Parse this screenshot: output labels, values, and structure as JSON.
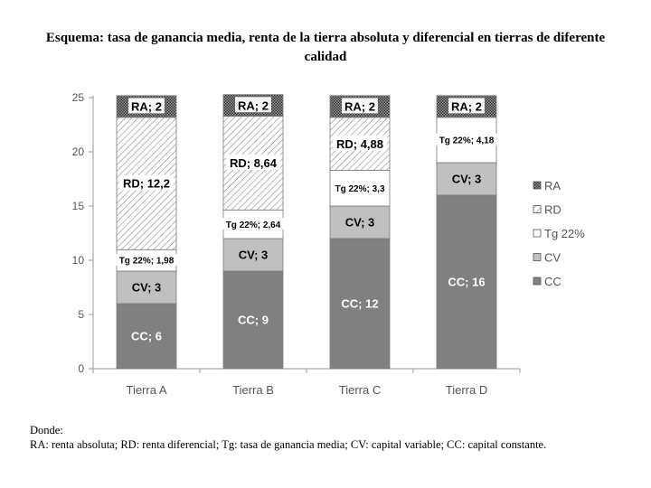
{
  "chart_data": {
    "type": "bar",
    "stacked": true,
    "title": "Esquema: tasa de ganancia media, renta de la tierra absoluta y diferencial en tierras de diferente calidad",
    "xlabel": "",
    "ylabel": "",
    "ylim": [
      0,
      25
    ],
    "yticks": [
      0,
      5,
      10,
      15,
      20,
      25
    ],
    "grid": false,
    "legend_position": "right",
    "categories": [
      "Tierra A",
      "Tierra B",
      "Tierra C",
      "Tierra D"
    ],
    "series": [
      {
        "name": "CC",
        "values": [
          6,
          9,
          12,
          16
        ],
        "labels": [
          "CC; 6",
          "CC; 9",
          "CC; 12",
          "CC; 16"
        ],
        "color": "#808080",
        "pattern": "solid"
      },
      {
        "name": "CV",
        "values": [
          3,
          3,
          3,
          3
        ],
        "labels": [
          "CV; 3",
          "CV; 3",
          "CV; 3",
          "CV; 3"
        ],
        "color": "#c0c0c0",
        "pattern": "solid"
      },
      {
        "name": "Tg 22%",
        "values": [
          1.98,
          2.64,
          3.3,
          4.18
        ],
        "labels": [
          "Tg 22%; 1,98",
          "Tg 22%; 2,64",
          "Tg 22%; 3,3",
          "Tg 22%; 4,18"
        ],
        "color": "#ffffff",
        "pattern": "solid"
      },
      {
        "name": "RD",
        "values": [
          12.2,
          8.64,
          4.88,
          0
        ],
        "labels": [
          "RD; 12,2",
          "RD; 8,64",
          "RD; 4,88",
          ""
        ],
        "color": "#ffffff",
        "pattern": "diagonal-light"
      },
      {
        "name": "RA",
        "values": [
          2,
          2,
          2,
          2
        ],
        "labels": [
          "RA; 2",
          "RA; 2",
          "RA; 2",
          "RA; 2"
        ],
        "color": "#555555",
        "pattern": "dense-dots"
      }
    ]
  },
  "note": {
    "heading": "Donde:",
    "text": "RA: renta absoluta; RD: renta diferencial; Tg: tasa de ganancia media; CV: capital variable; CC: capital constante."
  }
}
